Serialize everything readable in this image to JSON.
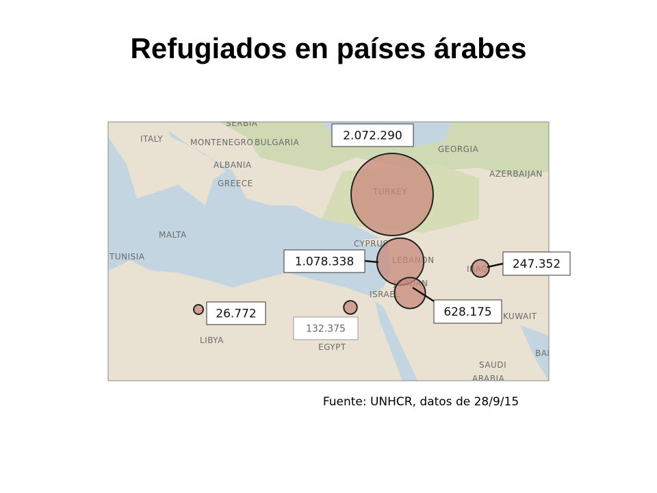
{
  "chart_data": {
    "type": "bubble-map",
    "title": "Refugiados en países árabes",
    "values": [
      2072290,
      1078338,
      628175,
      247352,
      132375,
      26772
    ],
    "value_labels": [
      "2.072.290",
      "1.078.338",
      "628.175",
      "247.352",
      "132.375",
      "26.772"
    ],
    "color": "#c98a7c",
    "source": "Fuente: UNHCR, datos de 28/9/15",
    "place_names": [
      "ITALY",
      "SERBIA",
      "MONTENEGRO",
      "BULGARIA",
      "ALBANIA",
      "GREECE",
      "MALTA",
      "TUNISIA",
      "LIBYA",
      "EGYPT",
      "TURKEY",
      "CYPRUS",
      "LEBANON",
      "ISRAEL",
      "JORDAN",
      "GEORGIA",
      "AZERBAIJAN",
      "IRAQ",
      "KUWAIT",
      "SAUDI",
      "ARABIA",
      "BAH"
    ]
  }
}
